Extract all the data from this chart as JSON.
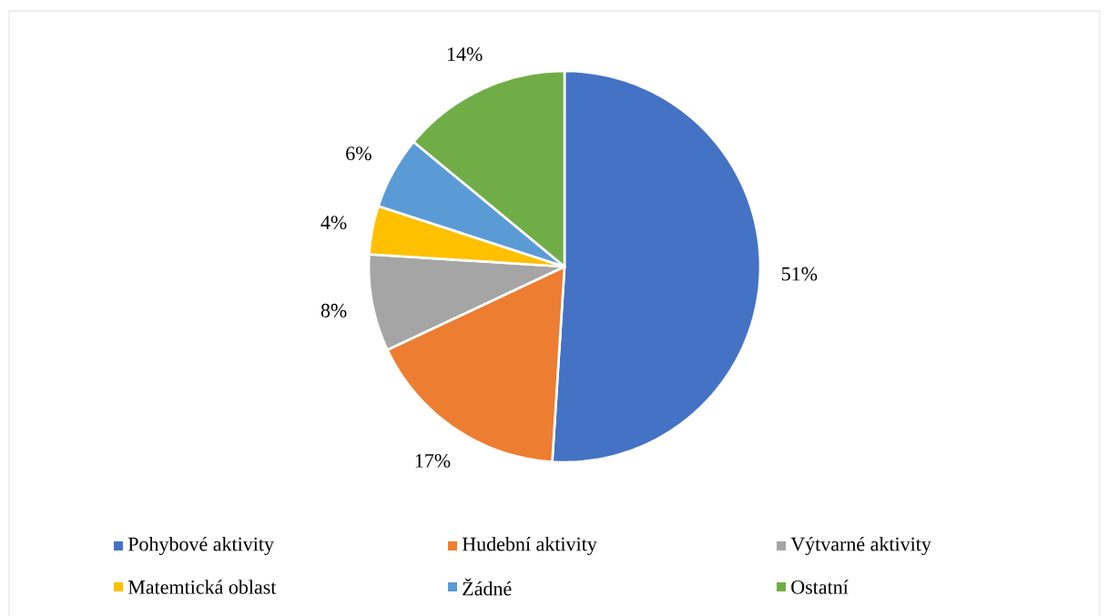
{
  "chart_data": {
    "type": "pie",
    "categories": [
      "Pohybové aktivity",
      "Hudební aktivity",
      "Výtvarné aktivity",
      "Matemtická oblast",
      "Žádné",
      "Ostatní"
    ],
    "values": [
      51,
      17,
      8,
      4,
      6,
      14
    ],
    "colors": [
      "#4472c4",
      "#ed7d31",
      "#a5a5a5",
      "#ffc000",
      "#5b9bd5",
      "#70ad47"
    ],
    "value_labels": [
      "51%",
      "17%",
      "8%",
      "4%",
      "6%",
      "14%"
    ],
    "legend": "bottom"
  }
}
